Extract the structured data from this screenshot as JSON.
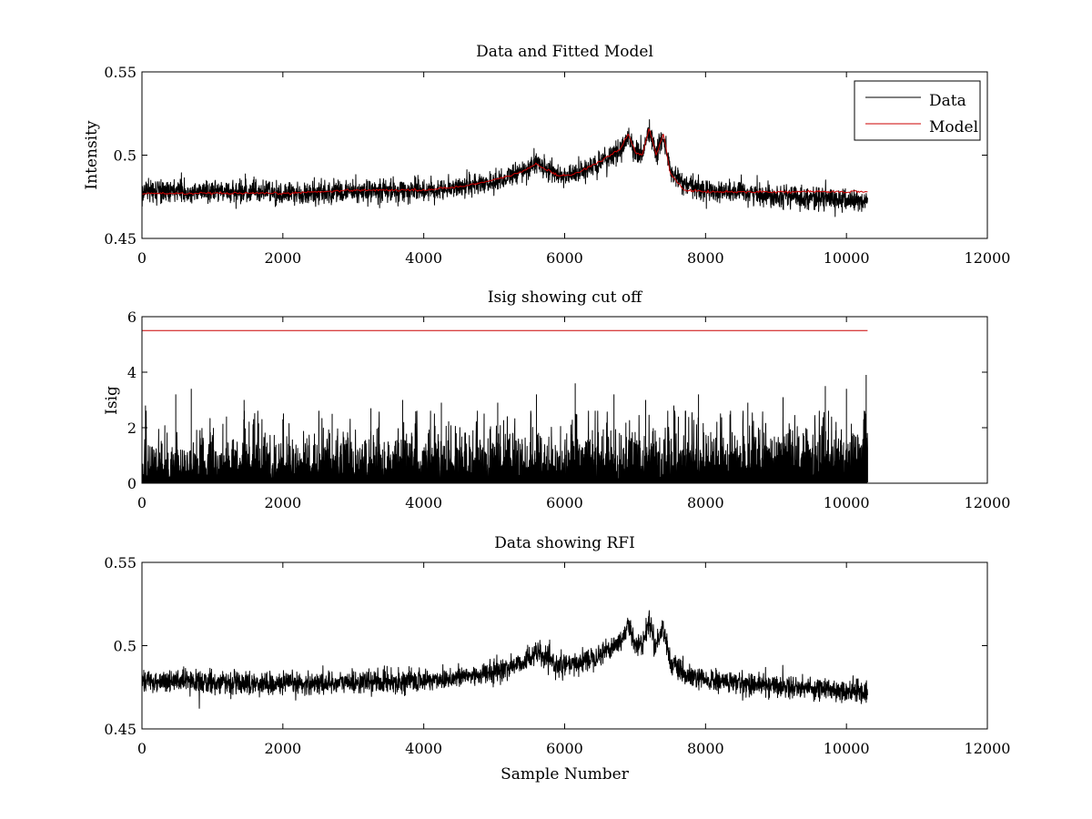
{
  "chart_data": [
    {
      "type": "line",
      "title": "Data and Fitted Model",
      "xlabel": "",
      "ylabel": "Intensity",
      "xlim": [
        0,
        12000
      ],
      "ylim": [
        0.45,
        0.55
      ],
      "xticks": [
        "0",
        "2000",
        "4000",
        "6000",
        "8000",
        "10000",
        "12000"
      ],
      "yticks": [
        "0.45",
        "0.5",
        "0.55"
      ],
      "legend": {
        "location": "top-right",
        "entries": [
          "Data",
          "Model"
        ]
      },
      "grid": false,
      "series": [
        {
          "name": "Data",
          "color": "#000000",
          "noise_amplitude": 0.006,
          "x": [
            0,
            1000,
            2000,
            3000,
            4000,
            4500,
            5000,
            5400,
            5600,
            5700,
            5900,
            6100,
            6500,
            6800,
            6900,
            7000,
            7100,
            7200,
            7300,
            7400,
            7500,
            7700,
            8000,
            9000,
            10000,
            10300
          ],
          "y": [
            0.479,
            0.478,
            0.477,
            0.478,
            0.479,
            0.481,
            0.484,
            0.49,
            0.496,
            0.493,
            0.488,
            0.488,
            0.495,
            0.503,
            0.512,
            0.502,
            0.5,
            0.515,
            0.5,
            0.512,
            0.49,
            0.482,
            0.479,
            0.476,
            0.473,
            0.472
          ]
        },
        {
          "name": "Model",
          "color": "#cc0000",
          "noise_amplitude": 0.0007,
          "x": [
            0,
            1000,
            2000,
            3000,
            4000,
            4500,
            5000,
            5400,
            5600,
            5700,
            5900,
            6100,
            6500,
            6800,
            6900,
            7000,
            7100,
            7200,
            7300,
            7400,
            7500,
            7700,
            8000,
            9000,
            10000,
            10300
          ],
          "y": [
            0.477,
            0.477,
            0.477,
            0.479,
            0.479,
            0.481,
            0.485,
            0.49,
            0.495,
            0.492,
            0.488,
            0.488,
            0.496,
            0.504,
            0.513,
            0.502,
            0.5,
            0.516,
            0.5,
            0.513,
            0.489,
            0.479,
            0.478,
            0.478,
            0.478,
            0.478
          ]
        }
      ]
    },
    {
      "type": "line",
      "title": "Isig showing cut off",
      "xlabel": "",
      "ylabel": "Isig",
      "xlim": [
        0,
        12000
      ],
      "ylim": [
        0,
        6
      ],
      "xticks": [
        "0",
        "2000",
        "4000",
        "6000",
        "8000",
        "10000",
        "12000"
      ],
      "yticks": [
        "0",
        "2",
        "4",
        "6"
      ],
      "grid": false,
      "series": [
        {
          "name": "Isig",
          "color": "#000000",
          "x_max": 10300,
          "typical_level": 0.75,
          "peaks": [
            {
              "x": 50,
              "y": 2.8
            },
            {
              "x": 480,
              "y": 3.2
            },
            {
              "x": 700,
              "y": 3.4
            },
            {
              "x": 1200,
              "y": 2.4
            },
            {
              "x": 1450,
              "y": 3.0
            },
            {
              "x": 2000,
              "y": 2.3
            },
            {
              "x": 2700,
              "y": 2.5
            },
            {
              "x": 3250,
              "y": 2.7
            },
            {
              "x": 3700,
              "y": 3.0
            },
            {
              "x": 4250,
              "y": 2.9
            },
            {
              "x": 5050,
              "y": 2.9
            },
            {
              "x": 5600,
              "y": 3.2
            },
            {
              "x": 6150,
              "y": 3.6
            },
            {
              "x": 6700,
              "y": 3.2
            },
            {
              "x": 7150,
              "y": 3.0
            },
            {
              "x": 7550,
              "y": 2.8
            },
            {
              "x": 7900,
              "y": 3.2
            },
            {
              "x": 8600,
              "y": 2.9
            },
            {
              "x": 9100,
              "y": 3.1
            },
            {
              "x": 9700,
              "y": 3.5
            },
            {
              "x": 10000,
              "y": 3.4
            },
            {
              "x": 10280,
              "y": 3.9
            }
          ]
        },
        {
          "name": "cut off",
          "color": "#cc0000",
          "x": [
            0,
            10300
          ],
          "y": [
            5.5,
            5.5
          ]
        }
      ]
    },
    {
      "type": "line",
      "title": "Data showing RFI",
      "xlabel": "Sample Number",
      "ylabel": "",
      "xlim": [
        0,
        12000
      ],
      "ylim": [
        0.45,
        0.55
      ],
      "xticks": [
        "0",
        "2000",
        "4000",
        "6000",
        "8000",
        "10000",
        "12000"
      ],
      "yticks": [
        "0.45",
        "0.5",
        "0.55"
      ],
      "grid": false,
      "series": [
        {
          "name": "Data",
          "color": "#000000",
          "noise_amplitude": 0.006,
          "x": [
            0,
            1000,
            2000,
            3000,
            4000,
            4500,
            5000,
            5400,
            5600,
            5700,
            5900,
            6100,
            6500,
            6800,
            6900,
            7000,
            7100,
            7200,
            7300,
            7400,
            7500,
            7700,
            8000,
            9000,
            10000,
            10300
          ],
          "y": [
            0.479,
            0.478,
            0.477,
            0.478,
            0.479,
            0.481,
            0.484,
            0.49,
            0.496,
            0.493,
            0.488,
            0.488,
            0.495,
            0.503,
            0.512,
            0.502,
            0.5,
            0.515,
            0.5,
            0.512,
            0.49,
            0.482,
            0.479,
            0.476,
            0.473,
            0.472
          ]
        }
      ]
    }
  ]
}
